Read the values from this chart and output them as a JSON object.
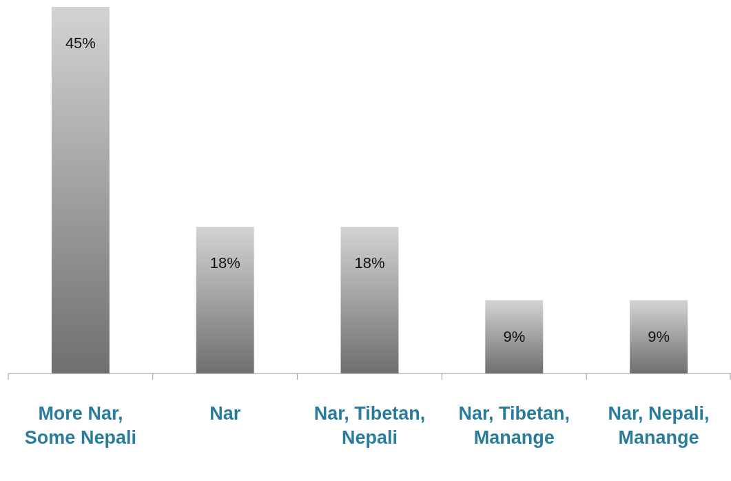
{
  "chart_data": {
    "type": "bar",
    "categories": [
      "More Nar, Some Nepali",
      "Nar",
      "Nar, Tibetan, Nepali",
      "Nar, Tibetan, Manange",
      "Nar, Nepali, Manange"
    ],
    "values": [
      45,
      18,
      18,
      9,
      9
    ],
    "value_labels": [
      "45%",
      "18%",
      "18%",
      "9%",
      "9%"
    ],
    "color": "#999999"
  }
}
